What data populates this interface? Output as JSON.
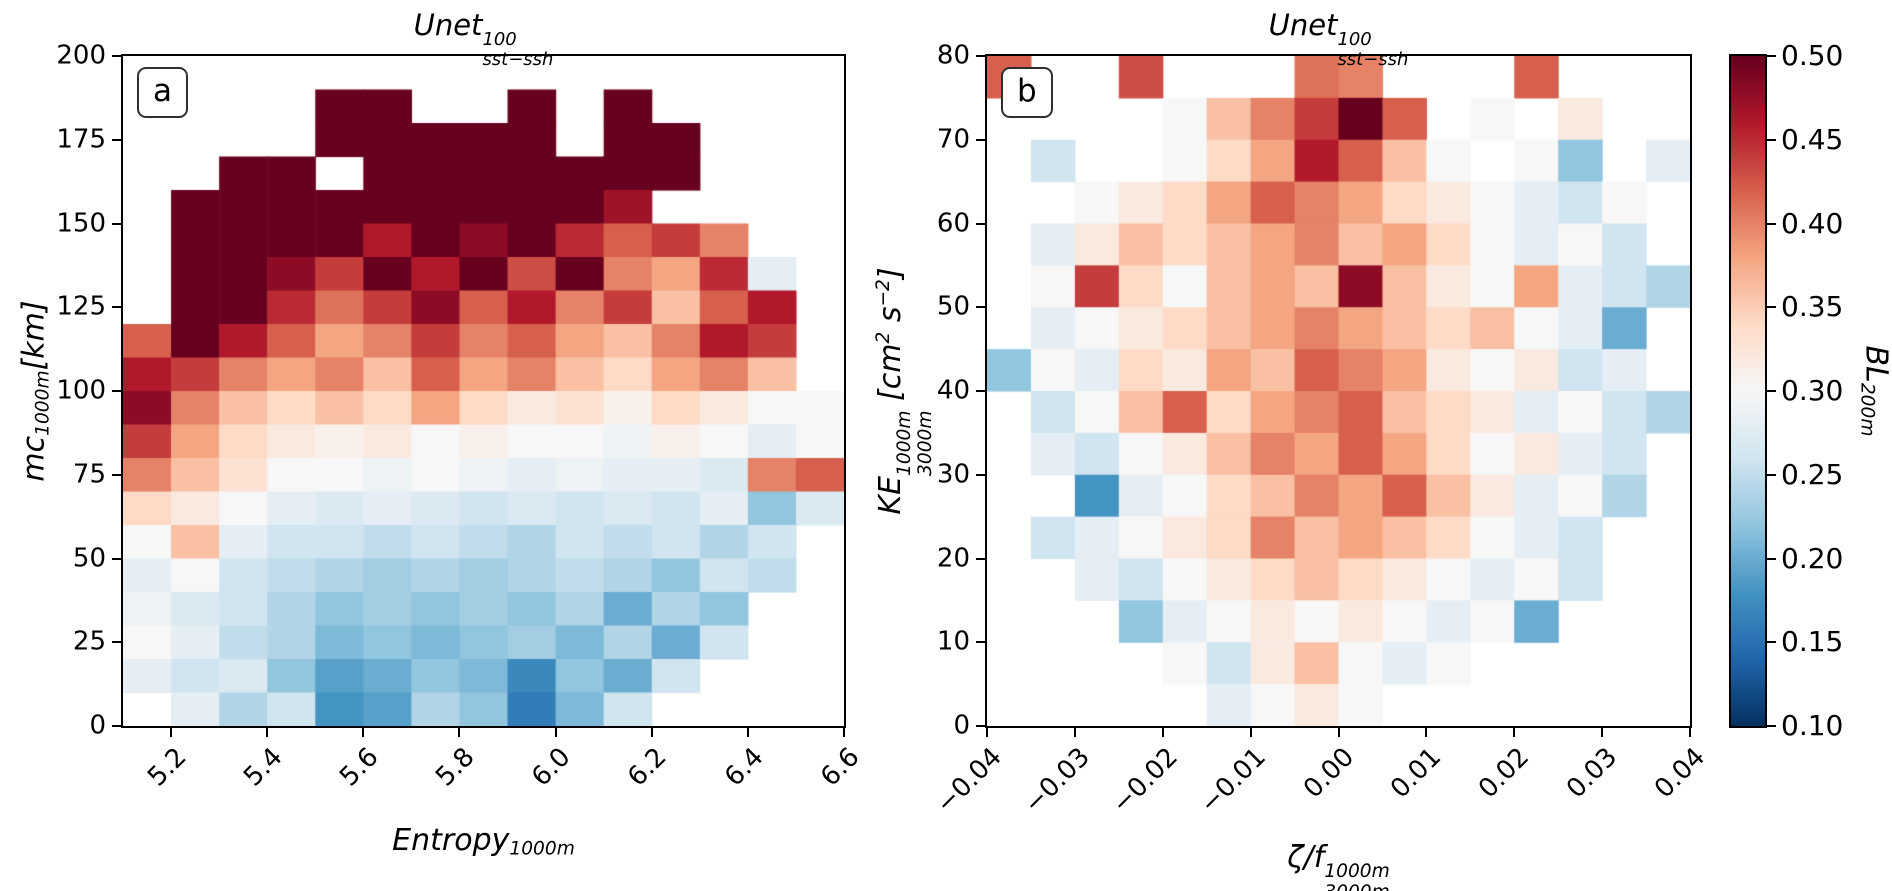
{
  "figure": {
    "background": "#ffffff"
  },
  "chart_data": {
    "type": "heatmap",
    "panels": [
      {
        "type": "heatmap",
        "panel_label": "a",
        "title_parts": [
          {
            "t": "Unet"
          },
          {
            "stack": {
              "sup": "100",
              "sub": "sst−ssh"
            }
          }
        ],
        "xlabel_parts": [
          {
            "t": "Entropy"
          },
          {
            "sub": "1000m"
          }
        ],
        "ylabel_parts": [
          {
            "t": "mc"
          },
          {
            "sub": "1000m"
          },
          {
            "t": "[km]"
          }
        ],
        "x_range": [
          5.1,
          6.6
        ],
        "y_range": [
          0,
          200
        ],
        "x_ticks": {
          "values": [
            5.2,
            5.4,
            5.6,
            5.8,
            6.0,
            6.2,
            6.4,
            6.6
          ],
          "labels": [
            "5.2",
            "5.4",
            "5.6",
            "5.8",
            "6.0",
            "6.2",
            "6.4",
            "6.6"
          ]
        },
        "y_ticks": {
          "values": [
            0,
            25,
            50,
            75,
            100,
            125,
            150,
            175,
            200
          ],
          "labels": [
            "0",
            "25",
            "50",
            "75",
            "100",
            "125",
            "150",
            "175",
            "200"
          ]
        },
        "grid": {
          "x0": 5.1,
          "y0": 0,
          "dx": 0.1,
          "dy": 10,
          "rows_order": "top-to-bottom",
          "values": [
            [
              null,
              null,
              null,
              null,
              null,
              null,
              null,
              null,
              null,
              null,
              null,
              null,
              null,
              null,
              null
            ],
            [
              null,
              null,
              null,
              null,
              0.5,
              0.5,
              null,
              null,
              0.5,
              null,
              0.5,
              null,
              null,
              null,
              null
            ],
            [
              null,
              null,
              null,
              null,
              0.5,
              0.5,
              0.5,
              0.5,
              0.5,
              null,
              0.5,
              0.5,
              null,
              null,
              null
            ],
            [
              null,
              null,
              0.5,
              0.5,
              null,
              0.5,
              0.5,
              0.5,
              0.5,
              0.5,
              0.5,
              0.5,
              null,
              null,
              null
            ],
            [
              null,
              0.5,
              0.5,
              0.5,
              0.5,
              0.5,
              0.5,
              0.5,
              0.5,
              0.5,
              0.47,
              null,
              null,
              null,
              null
            ],
            [
              null,
              0.5,
              0.5,
              0.5,
              0.5,
              0.46,
              0.5,
              0.48,
              0.5,
              0.45,
              0.42,
              0.44,
              0.4,
              null,
              null
            ],
            [
              null,
              0.5,
              0.5,
              0.48,
              0.44,
              0.5,
              0.46,
              0.5,
              0.43,
              0.5,
              0.4,
              0.38,
              0.45,
              0.28,
              null
            ],
            [
              null,
              0.5,
              0.5,
              0.45,
              0.41,
              0.44,
              0.48,
              0.42,
              0.46,
              0.4,
              0.44,
              0.36,
              0.42,
              0.46,
              null
            ],
            [
              0.42,
              0.5,
              0.46,
              0.42,
              0.38,
              0.4,
              0.44,
              0.4,
              0.42,
              0.38,
              0.36,
              0.4,
              0.46,
              0.44,
              null
            ],
            [
              0.46,
              0.44,
              0.4,
              0.38,
              0.4,
              0.36,
              0.42,
              0.38,
              0.4,
              0.36,
              0.34,
              0.38,
              0.4,
              0.36,
              null
            ],
            [
              0.48,
              0.4,
              0.36,
              0.34,
              0.36,
              0.34,
              0.38,
              0.34,
              0.32,
              0.33,
              0.31,
              0.34,
              0.32,
              0.3,
              0.3
            ],
            [
              0.44,
              0.38,
              0.34,
              0.32,
              0.31,
              0.32,
              0.3,
              0.31,
              0.3,
              0.3,
              0.29,
              0.31,
              0.3,
              0.28,
              0.3
            ],
            [
              0.4,
              0.36,
              0.33,
              0.3,
              0.3,
              0.29,
              0.3,
              0.29,
              0.28,
              0.29,
              0.28,
              0.28,
              0.27,
              0.4,
              0.42
            ],
            [
              0.34,
              0.32,
              0.3,
              0.28,
              0.27,
              0.28,
              0.27,
              0.26,
              0.27,
              0.26,
              0.27,
              0.26,
              0.28,
              0.22,
              0.27
            ],
            [
              0.3,
              0.36,
              0.28,
              0.26,
              0.26,
              0.25,
              0.26,
              0.25,
              0.24,
              0.26,
              0.25,
              0.26,
              0.24,
              0.26,
              null
            ],
            [
              0.28,
              0.3,
              0.26,
              0.25,
              0.24,
              0.23,
              0.24,
              0.23,
              0.24,
              0.25,
              0.24,
              0.22,
              0.26,
              0.25,
              null
            ],
            [
              0.29,
              0.27,
              0.26,
              0.24,
              0.22,
              0.23,
              0.22,
              0.23,
              0.22,
              0.24,
              0.2,
              0.24,
              0.22,
              null,
              null
            ],
            [
              0.3,
              0.28,
              0.25,
              0.24,
              0.21,
              0.22,
              0.21,
              0.22,
              0.23,
              0.21,
              0.24,
              0.2,
              0.26,
              null,
              null
            ],
            [
              0.28,
              0.26,
              0.27,
              0.22,
              0.19,
              0.2,
              0.22,
              0.21,
              0.17,
              0.22,
              0.2,
              0.26,
              null,
              null,
              null
            ],
            [
              null,
              0.28,
              0.24,
              0.26,
              0.18,
              0.19,
              0.24,
              0.22,
              0.16,
              0.21,
              0.26,
              null,
              null,
              null,
              null
            ]
          ]
        }
      },
      {
        "type": "heatmap",
        "panel_label": "b",
        "title_parts": [
          {
            "t": "Unet"
          },
          {
            "stack": {
              "sup": "100",
              "sub": "sst−ssh"
            }
          }
        ],
        "xlabel_parts": [
          {
            "t": "ζ/f"
          },
          {
            "stack": {
              "sup": "1000m",
              "sub": "3000m"
            }
          }
        ],
        "ylabel_parts": [
          {
            "t": "KE"
          },
          {
            "stack": {
              "sup": "1000m",
              "sub": "3000m"
            }
          },
          {
            "t": " [cm"
          },
          {
            "sup": "2"
          },
          {
            "t": " s"
          },
          {
            "sup": "−2"
          },
          {
            "t": "]"
          }
        ],
        "x_range": [
          -0.04,
          0.04
        ],
        "y_range": [
          0,
          80
        ],
        "x_ticks": {
          "values": [
            -0.04,
            -0.03,
            -0.02,
            -0.01,
            0.0,
            0.01,
            0.02,
            0.03,
            0.04
          ],
          "labels": [
            "−0.04",
            "−0.03",
            "−0.02",
            "−0.01",
            "0.00",
            "0.01",
            "0.02",
            "0.03",
            "0.04"
          ]
        },
        "y_ticks": {
          "values": [
            0,
            10,
            20,
            30,
            40,
            50,
            60,
            70,
            80
          ],
          "labels": [
            "0",
            "10",
            "20",
            "30",
            "40",
            "50",
            "60",
            "70",
            "80"
          ]
        },
        "grid": {
          "x0": -0.04,
          "y0": 0,
          "dx": 0.005,
          "dy": 5,
          "rows_order": "top-to-bottom",
          "values": [
            [
              0.42,
              null,
              null,
              0.43,
              null,
              null,
              null,
              0.41,
              0.4,
              null,
              null,
              null,
              0.42,
              null,
              null,
              null
            ],
            [
              null,
              null,
              null,
              null,
              0.3,
              0.36,
              0.4,
              0.44,
              0.5,
              0.42,
              null,
              0.3,
              null,
              0.32,
              null,
              null
            ],
            [
              null,
              0.26,
              null,
              null,
              0.3,
              0.34,
              0.38,
              0.46,
              0.42,
              0.36,
              0.3,
              null,
              0.3,
              0.22,
              null,
              0.28
            ],
            [
              null,
              null,
              0.3,
              0.32,
              0.34,
              0.38,
              0.42,
              0.4,
              0.38,
              0.34,
              0.32,
              0.3,
              0.28,
              0.26,
              0.3,
              null
            ],
            [
              null,
              0.28,
              0.32,
              0.36,
              0.34,
              0.36,
              0.38,
              0.4,
              0.36,
              0.38,
              0.34,
              0.3,
              0.28,
              0.3,
              0.26,
              null
            ],
            [
              null,
              0.3,
              0.44,
              0.34,
              0.3,
              0.36,
              0.38,
              0.36,
              0.48,
              0.36,
              0.32,
              0.3,
              0.38,
              0.28,
              0.26,
              0.24
            ],
            [
              null,
              0.28,
              0.3,
              0.32,
              0.34,
              0.36,
              0.38,
              0.4,
              0.38,
              0.36,
              0.34,
              0.36,
              0.3,
              0.28,
              0.2,
              null
            ],
            [
              0.22,
              0.3,
              0.28,
              0.34,
              0.32,
              0.38,
              0.36,
              0.42,
              0.4,
              0.38,
              0.32,
              0.3,
              0.32,
              0.26,
              0.28,
              null
            ],
            [
              null,
              0.26,
              0.3,
              0.36,
              0.42,
              0.34,
              0.38,
              0.4,
              0.42,
              0.36,
              0.34,
              0.32,
              0.28,
              0.3,
              0.26,
              0.24
            ],
            [
              null,
              0.28,
              0.26,
              0.3,
              0.32,
              0.36,
              0.4,
              0.38,
              0.42,
              0.38,
              0.34,
              0.3,
              0.32,
              0.28,
              0.26,
              null
            ],
            [
              null,
              null,
              0.18,
              0.28,
              0.3,
              0.34,
              0.36,
              0.4,
              0.38,
              0.42,
              0.36,
              0.32,
              0.28,
              0.3,
              0.24,
              null
            ],
            [
              null,
              0.26,
              0.28,
              0.3,
              0.32,
              0.34,
              0.4,
              0.36,
              0.38,
              0.36,
              0.34,
              0.3,
              0.28,
              0.26,
              null,
              null
            ],
            [
              null,
              null,
              0.28,
              0.26,
              0.3,
              0.32,
              0.34,
              0.36,
              0.34,
              0.32,
              0.3,
              0.28,
              0.3,
              0.26,
              null,
              null
            ],
            [
              null,
              null,
              null,
              0.22,
              0.28,
              0.3,
              0.32,
              0.3,
              0.32,
              0.3,
              0.28,
              0.3,
              0.2,
              null,
              null,
              null
            ],
            [
              null,
              null,
              null,
              null,
              0.3,
              0.26,
              0.32,
              0.36,
              0.3,
              0.28,
              0.3,
              null,
              null,
              null,
              null,
              null
            ],
            [
              null,
              null,
              null,
              null,
              null,
              0.28,
              0.3,
              0.32,
              0.3,
              null,
              null,
              null,
              null,
              null,
              null,
              null
            ]
          ]
        }
      }
    ],
    "colorbar": {
      "label_parts": [
        {
          "t": "BL"
        },
        {
          "sub": "200m"
        }
      ],
      "vmin": 0.1,
      "vmax": 0.5,
      "tick_values": [
        0.1,
        0.15,
        0.2,
        0.25,
        0.3,
        0.35,
        0.4,
        0.45,
        0.5
      ],
      "tick_labels": [
        "0.10",
        "0.15",
        "0.20",
        "0.25",
        "0.30",
        "0.35",
        "0.40",
        "0.45",
        "0.50"
      ],
      "colormap_name": "RdBu_r",
      "colormap_stops": [
        [
          0.0,
          "#053061"
        ],
        [
          0.1,
          "#2166ac"
        ],
        [
          0.2,
          "#4393c3"
        ],
        [
          0.3,
          "#92c5de"
        ],
        [
          0.4,
          "#d1e5f0"
        ],
        [
          0.5,
          "#f7f7f7"
        ],
        [
          0.6,
          "#fddbc7"
        ],
        [
          0.7,
          "#f4a582"
        ],
        [
          0.8,
          "#d6604d"
        ],
        [
          0.9,
          "#b2182b"
        ],
        [
          1.0,
          "#67001f"
        ]
      ]
    }
  }
}
